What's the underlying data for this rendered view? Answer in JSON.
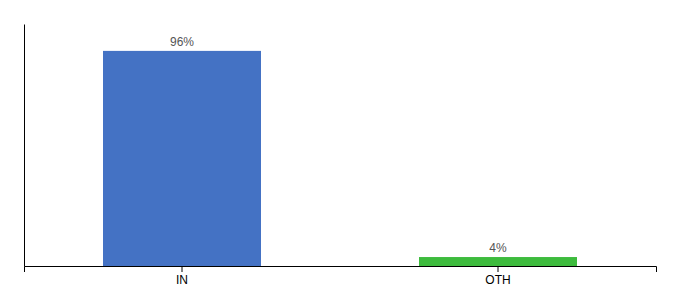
{
  "chart_data": {
    "type": "bar",
    "categories": [
      "IN",
      "OTH"
    ],
    "values": [
      96,
      4
    ],
    "value_labels": [
      "96%",
      "4%"
    ],
    "colors": [
      "#4472c4",
      "#3dbb3d"
    ],
    "ylim": [
      0,
      108
    ],
    "data_labels": true,
    "tick_labels": "x",
    "grid": false
  }
}
